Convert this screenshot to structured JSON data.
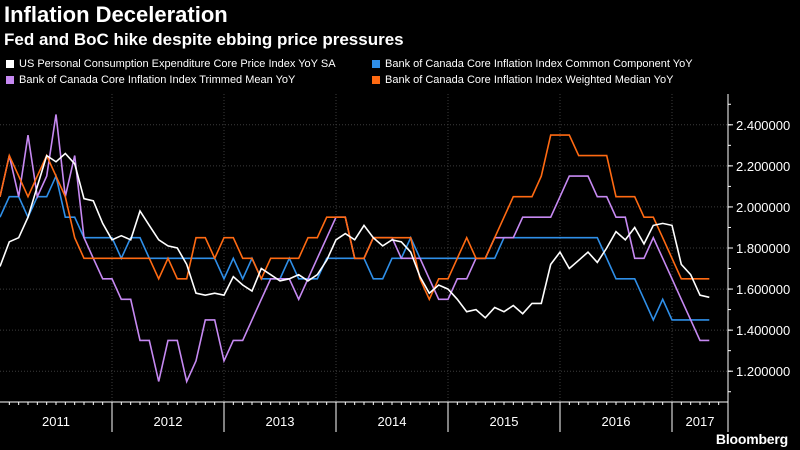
{
  "header": {
    "title": "Inflation Deceleration",
    "subtitle": "Fed and BoC hike despite ebbing price pressures"
  },
  "brand": "Bloomberg",
  "chart_data": {
    "type": "line",
    "title": "Inflation Deceleration",
    "subtitle": "Fed and BoC hike despite ebbing price pressures",
    "x_start": "2011-01",
    "x_end": "2017-07",
    "x_tick_labels": [
      "2011",
      "2012",
      "2013",
      "2014",
      "2015",
      "2016",
      "2017"
    ],
    "ylim": [
      1.05,
      2.55
    ],
    "y_ticks": [
      1.2,
      1.4,
      1.6,
      1.8,
      2.0,
      2.2,
      2.4
    ],
    "y_tick_labels": [
      "1.200000",
      "1.400000",
      "1.600000",
      "1.800000",
      "2.000000",
      "2.200000",
      "2.400000"
    ],
    "y_axis_side": "right",
    "grid": true,
    "legend_position": "top",
    "series": [
      {
        "name": "US Personal Consumption Expenditure Core Price Index YoY SA",
        "color": "#ffffff",
        "x": [
          "2011-01",
          "2011-02",
          "2011-03",
          "2011-04",
          "2011-05",
          "2011-06",
          "2011-07",
          "2011-08",
          "2011-09",
          "2011-10",
          "2011-11",
          "2011-12",
          "2012-01",
          "2012-02",
          "2012-03",
          "2012-04",
          "2012-05",
          "2012-06",
          "2012-07",
          "2012-08",
          "2012-09",
          "2012-10",
          "2012-11",
          "2012-12",
          "2013-01",
          "2013-02",
          "2013-03",
          "2013-04",
          "2013-05",
          "2013-06",
          "2013-07",
          "2013-08",
          "2013-09",
          "2013-10",
          "2013-11",
          "2013-12",
          "2014-01",
          "2014-02",
          "2014-03",
          "2014-04",
          "2014-05",
          "2014-06",
          "2014-07",
          "2014-08",
          "2014-09",
          "2014-10",
          "2014-11",
          "2014-12",
          "2015-01",
          "2015-02",
          "2015-03",
          "2015-04",
          "2015-05",
          "2015-06",
          "2015-07",
          "2015-08",
          "2015-09",
          "2015-10",
          "2015-11",
          "2015-12",
          "2016-01",
          "2016-02",
          "2016-03",
          "2016-04",
          "2016-05",
          "2016-06",
          "2016-07",
          "2016-08",
          "2016-09",
          "2016-10",
          "2016-11",
          "2016-12",
          "2017-01",
          "2017-02",
          "2017-03",
          "2017-04",
          "2017-05"
        ],
        "values": [
          1.71,
          1.83,
          1.85,
          1.95,
          2.1,
          2.25,
          2.22,
          2.26,
          2.21,
          2.04,
          2.03,
          1.92,
          1.84,
          1.86,
          1.84,
          1.98,
          1.91,
          1.84,
          1.81,
          1.8,
          1.72,
          1.58,
          1.57,
          1.58,
          1.57,
          1.66,
          1.62,
          1.59,
          1.7,
          1.67,
          1.64,
          1.65,
          1.67,
          1.64,
          1.67,
          1.74,
          1.84,
          1.87,
          1.84,
          1.91,
          1.85,
          1.81,
          1.84,
          1.83,
          1.78,
          1.66,
          1.58,
          1.62,
          1.6,
          1.55,
          1.49,
          1.5,
          1.46,
          1.51,
          1.49,
          1.52,
          1.48,
          1.53,
          1.53,
          1.72,
          1.78,
          1.7,
          1.74,
          1.78,
          1.73,
          1.8,
          1.88,
          1.84,
          1.9,
          1.82,
          1.91,
          1.92,
          1.91,
          1.72,
          1.67,
          1.57,
          1.56
        ]
      },
      {
        "name": "Bank of Canada Core Inflation Index Common Component YoY",
        "color": "#2f8fe8",
        "x": [
          "2011-01",
          "2011-02",
          "2011-03",
          "2011-04",
          "2011-05",
          "2011-06",
          "2011-07",
          "2011-08",
          "2011-09",
          "2011-10",
          "2011-11",
          "2011-12",
          "2012-01",
          "2012-02",
          "2012-03",
          "2012-04",
          "2012-05",
          "2012-06",
          "2012-07",
          "2012-08",
          "2012-09",
          "2012-10",
          "2012-11",
          "2012-12",
          "2013-01",
          "2013-02",
          "2013-03",
          "2013-04",
          "2013-05",
          "2013-06",
          "2013-07",
          "2013-08",
          "2013-09",
          "2013-10",
          "2013-11",
          "2013-12",
          "2014-01",
          "2014-02",
          "2014-03",
          "2014-04",
          "2014-05",
          "2014-06",
          "2014-07",
          "2014-08",
          "2014-09",
          "2014-10",
          "2014-11",
          "2014-12",
          "2015-01",
          "2015-02",
          "2015-03",
          "2015-04",
          "2015-05",
          "2015-06",
          "2015-07",
          "2015-08",
          "2015-09",
          "2015-10",
          "2015-11",
          "2015-12",
          "2016-01",
          "2016-02",
          "2016-03",
          "2016-04",
          "2016-05",
          "2016-06",
          "2016-07",
          "2016-08",
          "2016-09",
          "2016-10",
          "2016-11",
          "2016-12",
          "2017-01",
          "2017-02",
          "2017-03",
          "2017-04",
          "2017-05"
        ],
        "values": [
          1.95,
          2.05,
          2.05,
          1.95,
          2.05,
          2.05,
          2.15,
          1.95,
          1.95,
          1.85,
          1.85,
          1.85,
          1.85,
          1.75,
          1.85,
          1.85,
          1.75,
          1.75,
          1.75,
          1.75,
          1.75,
          1.75,
          1.75,
          1.75,
          1.65,
          1.75,
          1.65,
          1.75,
          1.65,
          1.65,
          1.65,
          1.75,
          1.65,
          1.65,
          1.65,
          1.75,
          1.75,
          1.75,
          1.75,
          1.75,
          1.65,
          1.65,
          1.75,
          1.75,
          1.85,
          1.75,
          1.75,
          1.75,
          1.75,
          1.75,
          1.75,
          1.75,
          1.75,
          1.75,
          1.85,
          1.85,
          1.85,
          1.85,
          1.85,
          1.85,
          1.85,
          1.85,
          1.85,
          1.85,
          1.85,
          1.75,
          1.65,
          1.65,
          1.65,
          1.55,
          1.45,
          1.55,
          1.45,
          1.45,
          1.45,
          1.45,
          1.45
        ]
      },
      {
        "name": "Bank of Canada Core Inflation Index Trimmed Mean YoY",
        "color": "#c689f2",
        "x": [
          "2011-01",
          "2011-02",
          "2011-03",
          "2011-04",
          "2011-05",
          "2011-06",
          "2011-07",
          "2011-08",
          "2011-09",
          "2011-10",
          "2011-11",
          "2011-12",
          "2012-01",
          "2012-02",
          "2012-03",
          "2012-04",
          "2012-05",
          "2012-06",
          "2012-07",
          "2012-08",
          "2012-09",
          "2012-10",
          "2012-11",
          "2012-12",
          "2013-01",
          "2013-02",
          "2013-03",
          "2013-04",
          "2013-05",
          "2013-06",
          "2013-07",
          "2013-08",
          "2013-09",
          "2013-10",
          "2013-11",
          "2013-12",
          "2014-01",
          "2014-02",
          "2014-03",
          "2014-04",
          "2014-05",
          "2014-06",
          "2014-07",
          "2014-08",
          "2014-09",
          "2014-10",
          "2014-11",
          "2014-12",
          "2015-01",
          "2015-02",
          "2015-03",
          "2015-04",
          "2015-05",
          "2015-06",
          "2015-07",
          "2015-08",
          "2015-09",
          "2015-10",
          "2015-11",
          "2015-12",
          "2016-01",
          "2016-02",
          "2016-03",
          "2016-04",
          "2016-05",
          "2016-06",
          "2016-07",
          "2016-08",
          "2016-09",
          "2016-10",
          "2016-11",
          "2016-12",
          "2017-01",
          "2017-02",
          "2017-03",
          "2017-04",
          "2017-05"
        ],
        "values": [
          2.05,
          2.25,
          2.05,
          2.35,
          2.05,
          2.15,
          2.45,
          2.05,
          2.25,
          1.85,
          1.75,
          1.65,
          1.65,
          1.55,
          1.55,
          1.35,
          1.35,
          1.15,
          1.35,
          1.35,
          1.15,
          1.25,
          1.45,
          1.45,
          1.25,
          1.35,
          1.35,
          1.45,
          1.55,
          1.65,
          1.65,
          1.65,
          1.55,
          1.65,
          1.75,
          1.85,
          1.95,
          1.95,
          1.75,
          1.75,
          1.85,
          1.85,
          1.85,
          1.75,
          1.75,
          1.75,
          1.65,
          1.55,
          1.55,
          1.65,
          1.65,
          1.75,
          1.75,
          1.85,
          1.85,
          1.85,
          1.95,
          1.95,
          1.95,
          1.95,
          2.05,
          2.15,
          2.15,
          2.15,
          2.05,
          2.05,
          1.95,
          1.95,
          1.75,
          1.75,
          1.85,
          1.75,
          1.65,
          1.55,
          1.45,
          1.35,
          1.35
        ]
      },
      {
        "name": "Bank of Canada Core Inflation Index Weighted Median YoY",
        "color": "#ff6a12",
        "x": [
          "2011-01",
          "2011-02",
          "2011-03",
          "2011-04",
          "2011-05",
          "2011-06",
          "2011-07",
          "2011-08",
          "2011-09",
          "2011-10",
          "2011-11",
          "2011-12",
          "2012-01",
          "2012-02",
          "2012-03",
          "2012-04",
          "2012-05",
          "2012-06",
          "2012-07",
          "2012-08",
          "2012-09",
          "2012-10",
          "2012-11",
          "2012-12",
          "2013-01",
          "2013-02",
          "2013-03",
          "2013-04",
          "2013-05",
          "2013-06",
          "2013-07",
          "2013-08",
          "2013-09",
          "2013-10",
          "2013-11",
          "2013-12",
          "2014-01",
          "2014-02",
          "2014-03",
          "2014-04",
          "2014-05",
          "2014-06",
          "2014-07",
          "2014-08",
          "2014-09",
          "2014-10",
          "2014-11",
          "2014-12",
          "2015-01",
          "2015-02",
          "2015-03",
          "2015-04",
          "2015-05",
          "2015-06",
          "2015-07",
          "2015-08",
          "2015-09",
          "2015-10",
          "2015-11",
          "2015-12",
          "2016-01",
          "2016-02",
          "2016-03",
          "2016-04",
          "2016-05",
          "2016-06",
          "2016-07",
          "2016-08",
          "2016-09",
          "2016-10",
          "2016-11",
          "2016-12",
          "2017-01",
          "2017-02",
          "2017-03",
          "2017-04",
          "2017-05"
        ],
        "values": [
          2.05,
          2.25,
          2.15,
          2.05,
          2.15,
          2.25,
          2.15,
          2.05,
          1.85,
          1.75,
          1.75,
          1.75,
          1.75,
          1.75,
          1.75,
          1.75,
          1.75,
          1.65,
          1.75,
          1.65,
          1.65,
          1.85,
          1.85,
          1.75,
          1.85,
          1.85,
          1.75,
          1.75,
          1.65,
          1.75,
          1.75,
          1.75,
          1.75,
          1.85,
          1.85,
          1.95,
          1.95,
          1.95,
          1.75,
          1.75,
          1.85,
          1.85,
          1.85,
          1.85,
          1.85,
          1.65,
          1.55,
          1.65,
          1.65,
          1.75,
          1.85,
          1.75,
          1.75,
          1.85,
          1.95,
          2.05,
          2.05,
          2.05,
          2.15,
          2.35,
          2.35,
          2.35,
          2.25,
          2.25,
          2.25,
          2.25,
          2.05,
          2.05,
          2.05,
          1.95,
          1.95,
          1.85,
          1.75,
          1.65,
          1.65,
          1.65,
          1.65
        ]
      }
    ]
  }
}
